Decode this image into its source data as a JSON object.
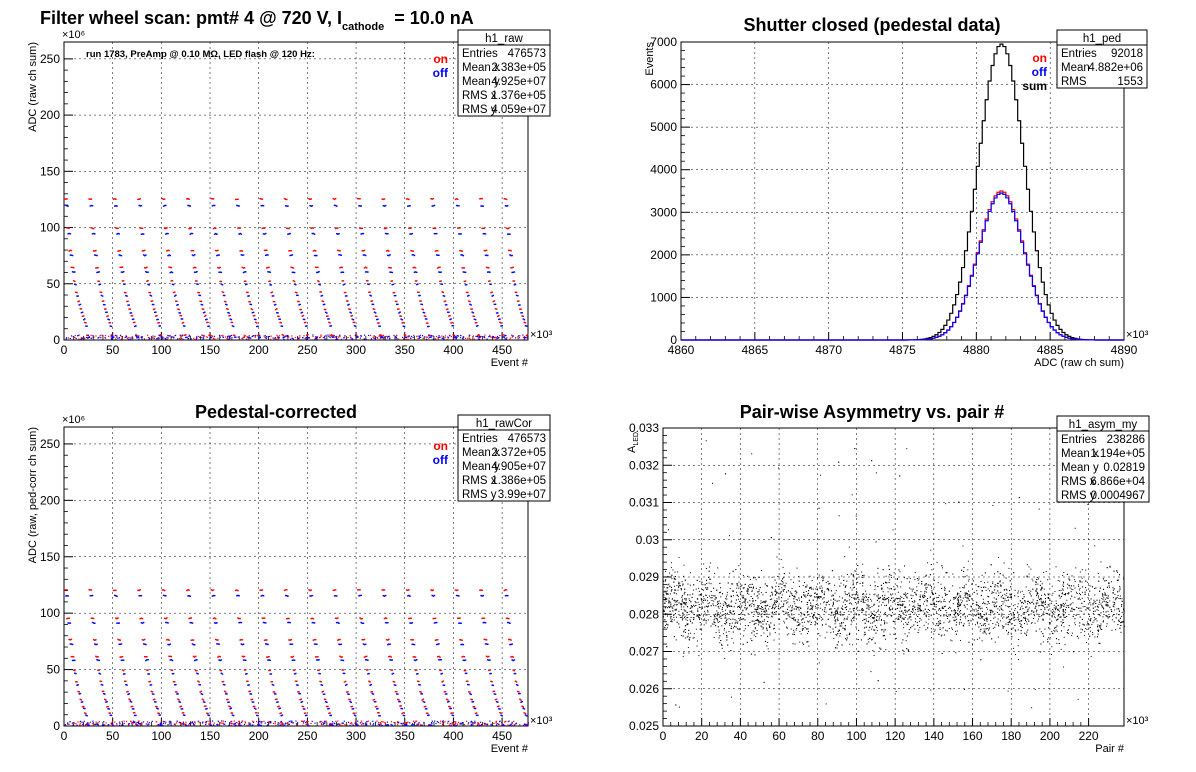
{
  "chart_data": [
    {
      "id": "raw",
      "type": "scatter",
      "title": "Filter wheel scan: pmt#   4 @   720 V, I",
      "title_sub": "cathode",
      "title_tail": "= 10.0 nA",
      "xlabel": "Event #",
      "ylabel": "ADC (raw ch sum)",
      "x_multiplier": "×10³",
      "y_multiplier": "×10⁶",
      "xlim": [
        0,
        476.6
      ],
      "ylim": [
        0,
        265
      ],
      "xticks": [
        "0",
        "50",
        "100",
        "150",
        "200",
        "250",
        "300",
        "350",
        "400",
        "450"
      ],
      "yticks": [
        "0",
        "50",
        "100",
        "150",
        "200",
        "250"
      ],
      "annotation": "run 1783, PreAmp @ 0.10 MΩ, LED flash @  120 Hz:",
      "legend": [
        {
          "label": "on",
          "color": "#ff0000"
        },
        {
          "label": "off",
          "color": "#0000ff"
        }
      ],
      "stats": {
        "name": "h1_raw",
        "rows": [
          {
            "label": "Entries",
            "value": "476573"
          },
          {
            "label": "Mean x",
            "value": "2.383e+05"
          },
          {
            "label": "Mean y",
            "value": "4.925e+07"
          },
          {
            "label": "RMS x",
            "value": "1.376e+05"
          },
          {
            "label": "RMS y",
            "value": "4.059e+07"
          }
        ]
      },
      "series": [
        {
          "name": "on",
          "color": "#ff0000",
          "levels": [
            126,
            100,
            80,
            65,
            53,
            43,
            35,
            28,
            22,
            16,
            5
          ]
        },
        {
          "name": "off",
          "color": "#0000ff",
          "levels": [
            120,
            95,
            76,
            61,
            50,
            40,
            32,
            25,
            19,
            13,
            3
          ]
        }
      ],
      "grid": true
    },
    {
      "id": "ped",
      "type": "histogram",
      "title": "Shutter closed (pedestal data)",
      "xlabel": "ADC (raw ch sum)",
      "ylabel": "Events",
      "x_multiplier": "×10³",
      "xlim": [
        4860,
        4890
      ],
      "ylim": [
        0,
        7000
      ],
      "xticks": [
        "4860",
        "4865",
        "4870",
        "4875",
        "4880",
        "4885",
        "4890"
      ],
      "yticks": [
        "0",
        "1000",
        "2000",
        "3000",
        "4000",
        "5000",
        "6000",
        "7000"
      ],
      "legend": [
        {
          "label": "on",
          "color": "#ff0000"
        },
        {
          "label": "off",
          "color": "#0000ff"
        },
        {
          "label": "sum",
          "color": "#000000"
        }
      ],
      "stats": {
        "name": "h1_ped",
        "rows": [
          {
            "label": "Entries",
            "value": "92018"
          },
          {
            "label": "Mean",
            "value": "4.882e+06"
          },
          {
            "label": "RMS",
            "value": "1553"
          }
        ]
      },
      "series": [
        {
          "name": "sum",
          "color": "#000000",
          "mean": 4881.7,
          "sigma": 1.55,
          "peak": 6950
        },
        {
          "name": "on",
          "color": "#ff0000",
          "mean": 4881.7,
          "sigma": 1.55,
          "peak": 3500
        },
        {
          "name": "off",
          "color": "#0000ff",
          "mean": 4881.7,
          "sigma": 1.55,
          "peak": 3450
        }
      ],
      "grid": true
    },
    {
      "id": "rawcor",
      "type": "scatter",
      "title": "Pedestal-corrected",
      "xlabel": "Event #",
      "ylabel": "ADC (raw, ped-corr ch sum)",
      "x_multiplier": "×10³",
      "y_multiplier": "×10⁶",
      "xlim": [
        0,
        476.6
      ],
      "ylim": [
        0,
        265
      ],
      "xticks": [
        "0",
        "50",
        "100",
        "150",
        "200",
        "250",
        "300",
        "350",
        "400",
        "450"
      ],
      "yticks": [
        "0",
        "50",
        "100",
        "150",
        "200",
        "250"
      ],
      "legend": [
        {
          "label": "on",
          "color": "#ff0000"
        },
        {
          "label": "off",
          "color": "#0000ff"
        }
      ],
      "stats": {
        "name": "h1_rawCor",
        "rows": [
          {
            "label": "Entries",
            "value": "476573"
          },
          {
            "label": "Mean x",
            "value": "2.372e+05"
          },
          {
            "label": "Mean y",
            "value": "4.905e+07"
          },
          {
            "label": "RMS x",
            "value": "1.386e+05"
          },
          {
            "label": "RMS y",
            "value": "3.99e+07"
          }
        ]
      },
      "series": [
        {
          "name": "on",
          "color": "#ff0000",
          "levels": [
            121,
            96,
            77,
            62,
            50,
            40,
            31,
            24,
            18,
            12,
            2
          ]
        },
        {
          "name": "off",
          "color": "#0000ff",
          "levels": [
            116,
            92,
            73,
            59,
            47,
            37,
            29,
            22,
            16,
            10,
            1
          ]
        }
      ],
      "grid": true
    },
    {
      "id": "asym",
      "type": "scatter",
      "title": "Pair-wise Asymmetry vs. pair #",
      "xlabel": "Pair #",
      "ylabel": "A",
      "ylabel_sub": "LED",
      "x_multiplier": "×10³",
      "xlim": [
        0,
        238.3
      ],
      "ylim": [
        0.025,
        0.033
      ],
      "xticks": [
        "0",
        "20",
        "40",
        "60",
        "80",
        "100",
        "120",
        "140",
        "160",
        "180",
        "200",
        "220"
      ],
      "yticks": [
        "0.025",
        "0.026",
        "0.027",
        "0.028",
        "0.029",
        "0.03",
        "0.031",
        "0.032",
        "0.033"
      ],
      "stats": {
        "name": "h1_asym_my",
        "rows": [
          {
            "label": "Entries",
            "value": "238286"
          },
          {
            "label": "Mean x",
            "value": "1.194e+05"
          },
          {
            "label": "Mean y",
            "value": "0.02819"
          },
          {
            "label": "RMS x",
            "value": "6.866e+04"
          },
          {
            "label": "RMS y",
            "value": "0.0004967"
          }
        ]
      },
      "series": [
        {
          "name": "asym",
          "color": "#000000",
          "center": 0.0282,
          "spread": 0.0005
        }
      ],
      "grid": true
    }
  ]
}
